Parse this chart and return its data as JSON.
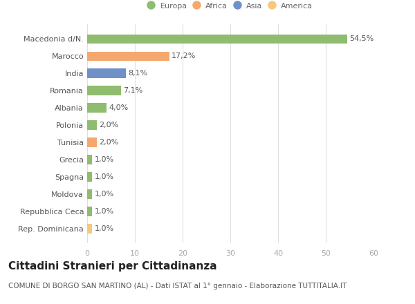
{
  "categories": [
    "Rep. Dominicana",
    "Repubblica Ceca",
    "Moldova",
    "Spagna",
    "Grecia",
    "Tunisia",
    "Polonia",
    "Albania",
    "Romania",
    "India",
    "Marocco",
    "Macedonia d/N."
  ],
  "values": [
    1.0,
    1.0,
    1.0,
    1.0,
    1.0,
    2.0,
    2.0,
    4.0,
    7.1,
    8.1,
    17.2,
    54.5
  ],
  "labels": [
    "1,0%",
    "1,0%",
    "1,0%",
    "1,0%",
    "1,0%",
    "2,0%",
    "2,0%",
    "4,0%",
    "7,1%",
    "8,1%",
    "17,2%",
    "54,5%"
  ],
  "colors": [
    "#f5c97a",
    "#8fbc6e",
    "#8fbc6e",
    "#8fbc6e",
    "#8fbc6e",
    "#f5a86e",
    "#8fbc6e",
    "#8fbc6e",
    "#8fbc6e",
    "#7090c8",
    "#f5a86e",
    "#8fbc6e"
  ],
  "legend_labels": [
    "Europa",
    "Africa",
    "Asia",
    "America"
  ],
  "legend_colors": [
    "#8fbc6e",
    "#f5a86e",
    "#7090c8",
    "#f5c97a"
  ],
  "xlim": [
    0,
    60
  ],
  "xticks": [
    0,
    10,
    20,
    30,
    40,
    50,
    60
  ],
  "title": "Cittadini Stranieri per Cittadinanza",
  "subtitle": "COMUNE DI BORGO SAN MARTINO (AL) - Dati ISTAT al 1° gennaio - Elaborazione TUTTITALIA.IT",
  "bg_color": "#ffffff",
  "plot_bg_color": "#ffffff",
  "title_fontsize": 11,
  "subtitle_fontsize": 7.5,
  "label_fontsize": 8,
  "tick_fontsize": 8
}
